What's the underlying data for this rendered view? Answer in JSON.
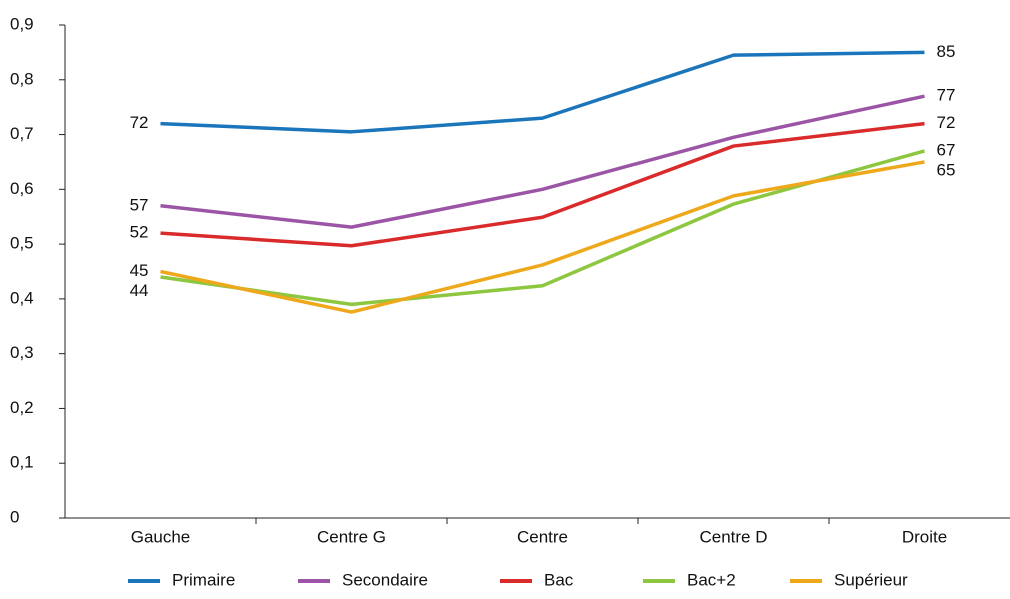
{
  "chart_data": {
    "type": "line",
    "categories": [
      "Gauche",
      "Centre G",
      "Centre",
      "Centre D",
      "Droite"
    ],
    "ylim": [
      0,
      0.9
    ],
    "yticks": [
      0,
      {
        "value": 0.1,
        "label": "0,1"
      },
      {
        "value": 0.2,
        "label": "0,2"
      },
      {
        "value": 0.3,
        "label": "0,3"
      },
      {
        "value": 0.4,
        "label": "0,4"
      },
      {
        "value": 0.5,
        "label": "0,5"
      },
      {
        "value": 0.6,
        "label": "0,6"
      },
      {
        "value": 0.7,
        "label": "0,7"
      },
      {
        "value": 0.8,
        "label": "0,8"
      },
      {
        "value": 0.9,
        "label": "0,9"
      }
    ],
    "grid": false,
    "legend": "bottom",
    "series": [
      {
        "name": "Primaire",
        "color": "#1b75bb",
        "values": [
          0.72,
          0.705,
          0.73,
          0.845,
          0.85
        ],
        "value_labels": [
          "72",
          null,
          null,
          null,
          "85"
        ]
      },
      {
        "name": "Secondaire",
        "color": "#9c55a6",
        "values": [
          0.57,
          0.531,
          0.6,
          0.695,
          0.77
        ],
        "value_labels": [
          "57",
          null,
          null,
          null,
          "77"
        ]
      },
      {
        "name": "Bac",
        "color": "#d92b2b",
        "values": [
          0.52,
          0.497,
          0.549,
          0.679,
          0.72
        ],
        "value_labels": [
          "52",
          null,
          null,
          null,
          "72"
        ]
      },
      {
        "name": "Bac+2",
        "color": "#8dc63f",
        "values": [
          0.44,
          0.39,
          0.424,
          0.573,
          0.67
        ],
        "value_labels": [
          "44",
          null,
          null,
          null,
          "67"
        ]
      },
      {
        "name": "Supérieur",
        "color": "#eea81c",
        "values": [
          0.45,
          0.376,
          0.462,
          0.588,
          0.65
        ],
        "value_labels": [
          "45",
          null,
          null,
          null,
          "65"
        ]
      }
    ]
  }
}
